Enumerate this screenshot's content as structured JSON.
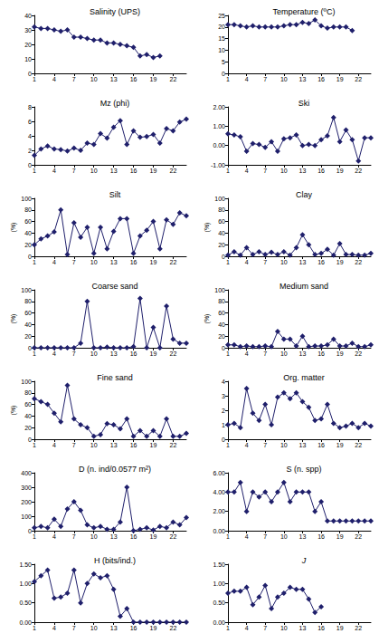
{
  "chart_data": [
    {
      "type": "line",
      "title": "Salinity (UPS)",
      "color": "#1f1f6b",
      "marker": "diamond",
      "grid": false,
      "x": [
        1,
        2,
        3,
        4,
        5,
        6,
        7,
        8,
        9,
        10,
        11,
        12,
        13,
        14,
        15,
        16,
        17,
        18,
        19,
        20
      ],
      "values": [
        32,
        31,
        31,
        30,
        29,
        30,
        25,
        25,
        24,
        23,
        23,
        21,
        21,
        20,
        19,
        18,
        12,
        13,
        11,
        12
      ],
      "xlim": [
        1,
        24
      ],
      "xticks": [
        1,
        4,
        7,
        10,
        13,
        16,
        19,
        22
      ],
      "ylim": [
        0,
        40
      ],
      "yticks": [
        0,
        10,
        20,
        30,
        40
      ]
    },
    {
      "type": "line",
      "title": "Temperature (ºC)",
      "color": "#1f1f6b",
      "marker": "diamond",
      "grid": false,
      "x": [
        1,
        2,
        3,
        4,
        5,
        6,
        7,
        8,
        9,
        10,
        11,
        12,
        13,
        14,
        15,
        16,
        17,
        18,
        19,
        20,
        21
      ],
      "values": [
        21,
        21,
        20.5,
        20,
        20.5,
        20,
        20,
        20,
        20,
        20.5,
        21,
        21,
        22,
        21.5,
        23,
        20.5,
        19.5,
        20,
        20,
        20,
        18.5
      ],
      "xlim": [
        1,
        24
      ],
      "xticks": [
        1,
        4,
        7,
        10,
        13,
        16,
        19,
        22
      ],
      "ylim": [
        0,
        25
      ],
      "yticks": [
        0,
        5,
        10,
        15,
        20,
        25
      ]
    },
    {
      "type": "line",
      "title": "Mz (phi)",
      "color": "#1f1f6b",
      "marker": "diamond",
      "grid": false,
      "x": [
        1,
        2,
        3,
        4,
        5,
        6,
        7,
        8,
        9,
        10,
        11,
        12,
        13,
        14,
        15,
        16,
        17,
        18,
        19,
        20,
        21,
        22,
        23,
        24
      ],
      "values": [
        1.3,
        2.2,
        2.6,
        2.2,
        2.1,
        1.9,
        2.3,
        2,
        3,
        2.8,
        4.3,
        3.7,
        5.2,
        6.1,
        2.8,
        4.7,
        3.8,
        3.9,
        4.2,
        3,
        5,
        4.7,
        5.9,
        6.3
      ],
      "xlim": [
        1,
        24
      ],
      "xticks": [
        1,
        4,
        7,
        10,
        13,
        16,
        19,
        22
      ],
      "ylim": [
        0,
        8
      ],
      "yticks": [
        0,
        2,
        4,
        6,
        8
      ]
    },
    {
      "type": "line",
      "title": "Ski",
      "color": "#1f1f6b",
      "marker": "diamond",
      "grid": false,
      "x": [
        1,
        2,
        3,
        4,
        5,
        6,
        7,
        8,
        9,
        10,
        11,
        12,
        13,
        14,
        15,
        16,
        17,
        18,
        19,
        20,
        21,
        22,
        23,
        24
      ],
      "values": [
        0.6,
        0.55,
        0.45,
        -0.3,
        0.1,
        0.05,
        -0.1,
        0.2,
        -0.3,
        0.35,
        0.4,
        0.55,
        0,
        0.05,
        0,
        0.3,
        0.5,
        1.45,
        0.2,
        0.8,
        0.3,
        -0.8,
        0.4,
        0.4
      ],
      "xlim": [
        1,
        24
      ],
      "xticks": [
        1,
        4,
        7,
        10,
        13,
        16,
        19,
        22
      ],
      "ylim": [
        -1,
        2
      ],
      "yticks": [
        {
          "value": -1,
          "label": "-1.00"
        },
        {
          "value": 0,
          "label": "0.00"
        },
        {
          "value": 1,
          "label": "1.00"
        },
        {
          "value": 2,
          "label": "2.00"
        }
      ]
    },
    {
      "type": "line",
      "title": "Silt",
      "ylabel": "(%)",
      "color": "#1f1f6b",
      "marker": "diamond",
      "grid": false,
      "x": [
        1,
        2,
        3,
        4,
        5,
        6,
        7,
        8,
        9,
        10,
        11,
        12,
        13,
        14,
        15,
        16,
        17,
        18,
        19,
        20,
        21,
        22,
        23,
        24
      ],
      "values": [
        20,
        30,
        35,
        42,
        80,
        3,
        58,
        33,
        50,
        5,
        50,
        13,
        43,
        65,
        65,
        5,
        35,
        45,
        60,
        13,
        63,
        55,
        75,
        70
      ],
      "xlim": [
        1,
        24
      ],
      "xticks": [
        1,
        4,
        7,
        10,
        13,
        16,
        19,
        22
      ],
      "ylim": [
        0,
        100
      ],
      "yticks": [
        0,
        20,
        40,
        60,
        80,
        100
      ]
    },
    {
      "type": "line",
      "title": "Clay",
      "ylabel": "(%)",
      "color": "#1f1f6b",
      "marker": "diamond",
      "grid": false,
      "x": [
        1,
        2,
        3,
        4,
        5,
        6,
        7,
        8,
        9,
        10,
        11,
        12,
        13,
        14,
        15,
        16,
        17,
        18,
        19,
        20,
        21,
        22,
        23,
        24
      ],
      "values": [
        2,
        8,
        2,
        15,
        3,
        8,
        3,
        7,
        3,
        8,
        2,
        15,
        37,
        20,
        3,
        5,
        12,
        2,
        22,
        3,
        3,
        2,
        2,
        5
      ],
      "xlim": [
        1,
        24
      ],
      "xticks": [
        1,
        4,
        7,
        10,
        13,
        16,
        19,
        22
      ],
      "ylim": [
        0,
        100
      ],
      "yticks": [
        0,
        20,
        40,
        60,
        80,
        100
      ]
    },
    {
      "type": "line",
      "title": "Coarse sand",
      "ylabel": "(%)",
      "color": "#1f1f6b",
      "marker": "diamond",
      "grid": false,
      "x": [
        1,
        2,
        3,
        4,
        5,
        6,
        7,
        8,
        9,
        10,
        11,
        12,
        13,
        14,
        15,
        16,
        17,
        18,
        19,
        20,
        21,
        22,
        23,
        24
      ],
      "values": [
        0,
        0,
        0,
        0,
        0,
        0,
        0,
        8,
        80,
        0,
        0,
        1,
        0,
        0,
        0,
        2,
        85,
        0,
        35,
        0,
        72,
        15,
        8,
        8
      ],
      "xlim": [
        1,
        24
      ],
      "xticks": [
        1,
        4,
        7,
        10,
        13,
        16,
        19,
        22
      ],
      "ylim": [
        0,
        100
      ],
      "yticks": [
        0,
        20,
        40,
        60,
        80,
        100
      ]
    },
    {
      "type": "line",
      "title": "Medium sand",
      "ylabel": "(%)",
      "color": "#1f1f6b",
      "marker": "diamond",
      "grid": false,
      "x": [
        1,
        2,
        3,
        4,
        5,
        6,
        7,
        8,
        9,
        10,
        11,
        12,
        13,
        14,
        15,
        16,
        17,
        18,
        19,
        20,
        21,
        22,
        23,
        24
      ],
      "values": [
        5,
        5,
        2,
        3,
        2,
        2,
        3,
        2,
        28,
        15,
        15,
        3,
        20,
        2,
        3,
        3,
        5,
        15,
        3,
        3,
        8,
        2,
        2,
        5
      ],
      "xlim": [
        1,
        24
      ],
      "xticks": [
        1,
        4,
        7,
        10,
        13,
        16,
        19,
        22
      ],
      "ylim": [
        0,
        100
      ],
      "yticks": [
        0,
        20,
        40,
        60,
        80,
        100
      ]
    },
    {
      "type": "line",
      "title": "Fine sand",
      "ylabel": "(%)",
      "color": "#1f1f6b",
      "marker": "diamond",
      "grid": false,
      "x": [
        1,
        2,
        3,
        4,
        5,
        6,
        7,
        8,
        9,
        10,
        11,
        12,
        13,
        14,
        15,
        16,
        17,
        18,
        19,
        20,
        21,
        22,
        23,
        24
      ],
      "values": [
        70,
        65,
        60,
        45,
        30,
        93,
        35,
        25,
        20,
        5,
        8,
        27,
        25,
        18,
        35,
        5,
        15,
        5,
        15,
        5,
        35,
        5,
        5,
        10
      ],
      "xlim": [
        1,
        24
      ],
      "xticks": [
        1,
        4,
        7,
        10,
        13,
        16,
        19,
        22
      ],
      "ylim": [
        0,
        100
      ],
      "yticks": [
        0,
        20,
        40,
        60,
        80,
        100
      ]
    },
    {
      "type": "line",
      "title": "Org. matter",
      "color": "#1f1f6b",
      "marker": "diamond",
      "grid": false,
      "x": [
        1,
        2,
        3,
        4,
        5,
        6,
        7,
        8,
        9,
        10,
        11,
        12,
        13,
        14,
        15,
        16,
        17,
        18,
        19,
        20,
        21,
        22,
        23,
        24
      ],
      "values": [
        1,
        1.1,
        0.8,
        3.5,
        1.8,
        1.3,
        2.4,
        1,
        2.9,
        3.2,
        2.8,
        3.2,
        2.6,
        2.2,
        1.3,
        1.4,
        2.4,
        1.1,
        0.8,
        0.9,
        1.1,
        0.8,
        1.1,
        0.9
      ],
      "xlim": [
        1,
        24
      ],
      "xticks": [
        1,
        4,
        7,
        10,
        13,
        16,
        19,
        22
      ],
      "ylim": [
        0,
        4
      ],
      "yticks": [
        0,
        1,
        2,
        3,
        4
      ]
    },
    {
      "type": "line",
      "title": "D (n. ind/0.0577 m²)",
      "color": "#1f1f6b",
      "marker": "diamond",
      "grid": false,
      "x": [
        1,
        2,
        3,
        4,
        5,
        6,
        7,
        8,
        9,
        10,
        11,
        12,
        13,
        14,
        15,
        16,
        17,
        18,
        19,
        20,
        21,
        22,
        23,
        24
      ],
      "values": [
        20,
        30,
        20,
        80,
        30,
        150,
        200,
        140,
        40,
        20,
        30,
        10,
        10,
        60,
        300,
        0,
        10,
        20,
        5,
        30,
        20,
        60,
        40,
        90
      ],
      "xlim": [
        1,
        24
      ],
      "xticks": [
        1,
        4,
        7,
        10,
        13,
        16,
        19,
        22
      ],
      "ylim": [
        0,
        400
      ],
      "yticks": [
        0,
        100,
        200,
        300,
        400
      ]
    },
    {
      "type": "line",
      "title": "S (n. spp)",
      "color": "#1f1f6b",
      "marker": "diamond",
      "grid": false,
      "x": [
        1,
        2,
        3,
        4,
        5,
        6,
        7,
        8,
        9,
        10,
        11,
        12,
        13,
        14,
        15,
        16,
        17,
        18,
        19,
        20,
        21,
        22,
        23,
        24
      ],
      "values": [
        4,
        4,
        5,
        2,
        4,
        3.5,
        4,
        3,
        4,
        5,
        3,
        4,
        4,
        4,
        2,
        3,
        1,
        1,
        1,
        1,
        1,
        1,
        1,
        1
      ],
      "xlim": [
        1,
        24
      ],
      "xticks": [
        1,
        4,
        7,
        10,
        13,
        16,
        19,
        22
      ],
      "ylim": [
        0,
        6
      ],
      "yticks": [
        {
          "value": 0,
          "label": "0.00"
        },
        {
          "value": 2,
          "label": "2.00"
        },
        {
          "value": 4,
          "label": "4.00"
        },
        {
          "value": 6,
          "label": "6.00"
        }
      ]
    },
    {
      "type": "line",
      "title": "H (bits/ind.)",
      "color": "#1f1f6b",
      "marker": "diamond",
      "grid": false,
      "x": [
        1,
        2,
        3,
        4,
        5,
        6,
        7,
        8,
        9,
        10,
        11,
        12,
        13,
        14,
        15,
        16,
        17,
        18,
        19,
        20,
        21,
        22,
        23,
        24
      ],
      "values": [
        1.05,
        1.2,
        1.35,
        0.62,
        0.65,
        0.75,
        1.35,
        0.5,
        1,
        1.25,
        1.15,
        1.2,
        0.85,
        0.15,
        0.35,
        0,
        0,
        0,
        0,
        0,
        0,
        0,
        0,
        0
      ],
      "xlim": [
        1,
        24
      ],
      "xticks": [
        1,
        4,
        7,
        10,
        13,
        16,
        19,
        22
      ],
      "ylim": [
        0,
        1.5
      ],
      "yticks": [
        {
          "value": 0,
          "label": "0.00"
        },
        {
          "value": 0.5,
          "label": "0.50"
        },
        {
          "value": 1,
          "label": "1.00"
        },
        {
          "value": 1.5,
          "label": "1.50"
        }
      ]
    },
    {
      "type": "line",
      "title": "J",
      "color": "#1f1f6b",
      "marker": "diamond",
      "grid": false,
      "x": [
        1,
        2,
        3,
        4,
        5,
        6,
        7,
        8,
        9,
        10,
        11,
        12,
        13,
        14,
        15,
        16
      ],
      "values": [
        0.75,
        0.8,
        0.8,
        0.9,
        0.45,
        0.65,
        0.95,
        0.35,
        0.65,
        0.75,
        0.9,
        0.85,
        0.85,
        0.6,
        0.25,
        0.4
      ],
      "xlim": [
        1,
        24
      ],
      "xticks": [
        1,
        4,
        7,
        10,
        13,
        16,
        19,
        22
      ],
      "ylim": [
        0,
        1.5
      ],
      "yticks": [
        {
          "value": 0,
          "label": "0.00"
        },
        {
          "value": 0.5,
          "label": "0.50"
        },
        {
          "value": 1,
          "label": "1.00"
        },
        {
          "value": 1.5,
          "label": "1.50"
        }
      ]
    }
  ]
}
